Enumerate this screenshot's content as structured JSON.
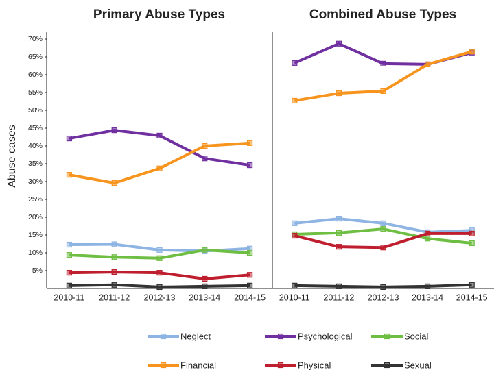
{
  "y_label": "Abuse cases",
  "chart_data": [
    {
      "type": "line",
      "title": "Primary Abuse Types",
      "categories": [
        "2010-11",
        "2011-12",
        "2012-13",
        "2013-14",
        "2014-15"
      ],
      "ylim": [
        0,
        70
      ],
      "yticks": [
        {
          "value": 5,
          "label": "5%"
        },
        {
          "value": 10,
          "label": "10%"
        },
        {
          "value": 15,
          "label": "15%"
        },
        {
          "value": 20,
          "label": "20%"
        },
        {
          "value": 25,
          "label": "25%"
        },
        {
          "value": 30,
          "label": "30%"
        },
        {
          "value": 35,
          "label": "35%"
        },
        {
          "value": 40,
          "label": "40%"
        },
        {
          "value": 45,
          "label": "45%"
        },
        {
          "value": 50,
          "label": "50%"
        },
        {
          "value": 55,
          "label": "55%"
        },
        {
          "value": 60,
          "label": "60%"
        },
        {
          "value": 65,
          "label": "65%"
        },
        {
          "value": 70,
          "label": "70%"
        }
      ],
      "series": [
        {
          "name": "Neglect",
          "color": "#8db4e2",
          "values": [
            12.3,
            12.4,
            10.8,
            10.5,
            11.2
          ]
        },
        {
          "name": "Psychological",
          "color": "#7030a0",
          "values": [
            42.1,
            44.4,
            42.9,
            36.5,
            34.6
          ]
        },
        {
          "name": "Social",
          "color": "#6fbe44",
          "values": [
            9.4,
            8.8,
            8.5,
            10.8,
            10
          ]
        },
        {
          "name": "Financial",
          "color": "#f7941d",
          "values": [
            31.9,
            29.6,
            33.7,
            40,
            40.8
          ]
        },
        {
          "name": "Physical",
          "color": "#be1e2d",
          "values": [
            4.4,
            4.6,
            4.4,
            2.7,
            3.8
          ]
        },
        {
          "name": "Sexual",
          "color": "#333333",
          "values": [
            0.8,
            1.0,
            0.4,
            0.6,
            0.8
          ]
        }
      ]
    },
    {
      "type": "line",
      "title": "Combined Abuse Types",
      "categories": [
        "2010-11",
        "2011-12",
        "2012-13",
        "2013-14",
        "2014-15"
      ],
      "ylim": [
        0,
        70
      ],
      "series": [
        {
          "color": "#8db4e2",
          "values": [
            18.3,
            19.6,
            18.3,
            15.8,
            16.3
          ]
        },
        {
          "color": "#7030a0",
          "values": [
            63.3,
            68.7,
            63.1,
            62.9,
            66.2
          ]
        },
        {
          "color": "#6fbe44",
          "values": [
            15.2,
            15.6,
            16.7,
            14,
            12.7
          ]
        },
        {
          "color": "#f7941d",
          "values": [
            52.7,
            54.8,
            55.4,
            62.9,
            66.5
          ]
        },
        {
          "color": "#be1e2d",
          "values": [
            14.8,
            11.7,
            11.5,
            15.4,
            15.4
          ]
        },
        {
          "color": "#333333",
          "values": [
            0.8,
            0.6,
            0.4,
            0.6,
            1.0
          ]
        }
      ]
    }
  ]
}
